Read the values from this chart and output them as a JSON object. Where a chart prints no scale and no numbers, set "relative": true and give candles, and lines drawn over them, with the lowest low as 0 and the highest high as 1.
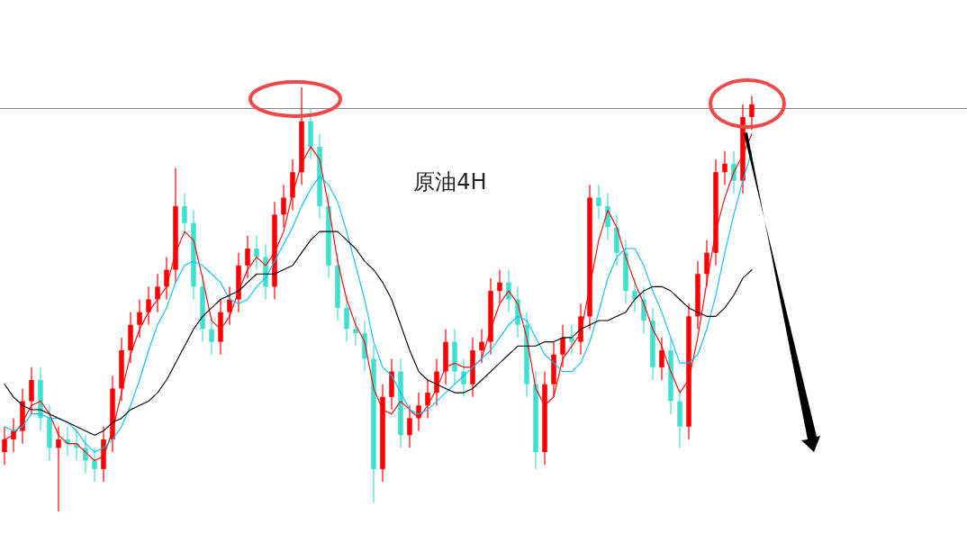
{
  "chart_data": {
    "type": "candlestick",
    "title": "原油4H",
    "relative": true,
    "categories": [
      null,
      null,
      null,
      null,
      null,
      null,
      null,
      null,
      null,
      null,
      null,
      null,
      null,
      null,
      null,
      null,
      null,
      null,
      null,
      null,
      null,
      null,
      null,
      null,
      null,
      null,
      null,
      null,
      null,
      null,
      null,
      null,
      null,
      null,
      null,
      null,
      null,
      null,
      null,
      null,
      null,
      null,
      null,
      null,
      null,
      null,
      null,
      null,
      null,
      null,
      null,
      null,
      null,
      null,
      null,
      null,
      null,
      null,
      null,
      null,
      null,
      null,
      null,
      null,
      null,
      null,
      null,
      null,
      null,
      null,
      null,
      null,
      null,
      null,
      null,
      null,
      null,
      null,
      null,
      null,
      null,
      null,
      null,
      null
    ],
    "ref_lines": [
      {
        "axis": "y",
        "value": 0.95,
        "color": "#808080"
      }
    ],
    "series": [
      {
        "type": "candlestick",
        "ohlc": [
          [
            0.14,
            0.2,
            0.11,
            0.17
          ],
          [
            0.17,
            0.22,
            0.14,
            0.19
          ],
          [
            0.19,
            0.29,
            0.16,
            0.26
          ],
          [
            0.26,
            0.34,
            0.23,
            0.31
          ],
          [
            0.31,
            0.34,
            0.19,
            0.22
          ],
          [
            0.22,
            0.25,
            0.12,
            0.15
          ],
          [
            0.15,
            0.2,
            0.0,
            0.17
          ],
          [
            0.17,
            0.2,
            0.13,
            0.16
          ],
          [
            0.16,
            0.19,
            0.12,
            0.15
          ],
          [
            0.15,
            0.18,
            0.09,
            0.12
          ],
          [
            0.12,
            0.15,
            0.07,
            0.1
          ],
          [
            0.1,
            0.2,
            0.07,
            0.17
          ],
          [
            0.17,
            0.32,
            0.14,
            0.29
          ],
          [
            0.29,
            0.41,
            0.26,
            0.38
          ],
          [
            0.38,
            0.47,
            0.35,
            0.44
          ],
          [
            0.44,
            0.5,
            0.41,
            0.47
          ],
          [
            0.47,
            0.53,
            0.44,
            0.5
          ],
          [
            0.5,
            0.56,
            0.47,
            0.53
          ],
          [
            0.53,
            0.6,
            0.5,
            0.57
          ],
          [
            0.57,
            0.81,
            0.54,
            0.72
          ],
          [
            0.72,
            0.75,
            0.65,
            0.68
          ],
          [
            0.68,
            0.71,
            0.5,
            0.53
          ],
          [
            0.53,
            0.56,
            0.4,
            0.43
          ],
          [
            0.43,
            0.46,
            0.37,
            0.4
          ],
          [
            0.4,
            0.5,
            0.37,
            0.47
          ],
          [
            0.47,
            0.53,
            0.44,
            0.5
          ],
          [
            0.5,
            0.61,
            0.47,
            0.58
          ],
          [
            0.58,
            0.65,
            0.55,
            0.62
          ],
          [
            0.62,
            0.65,
            0.57,
            0.6
          ],
          [
            0.6,
            0.63,
            0.5,
            0.53
          ],
          [
            0.53,
            0.73,
            0.5,
            0.7
          ],
          [
            0.7,
            0.77,
            0.67,
            0.74
          ],
          [
            0.74,
            0.83,
            0.71,
            0.8
          ],
          [
            0.8,
            1.0,
            0.77,
            0.92
          ],
          [
            0.92,
            0.95,
            0.83,
            0.86
          ],
          [
            0.86,
            0.89,
            0.69,
            0.72
          ],
          [
            0.72,
            0.75,
            0.55,
            0.58
          ],
          [
            0.58,
            0.61,
            0.45,
            0.48
          ],
          [
            0.48,
            0.51,
            0.4,
            0.43
          ],
          [
            0.43,
            0.46,
            0.39,
            0.42
          ],
          [
            0.42,
            0.45,
            0.33,
            0.36
          ],
          [
            0.36,
            0.39,
            0.02,
            0.1
          ],
          [
            0.1,
            0.3,
            0.07,
            0.27
          ],
          [
            0.27,
            0.36,
            0.24,
            0.33
          ],
          [
            0.33,
            0.36,
            0.15,
            0.18
          ],
          [
            0.18,
            0.25,
            0.15,
            0.22
          ],
          [
            0.22,
            0.28,
            0.19,
            0.25
          ],
          [
            0.25,
            0.31,
            0.22,
            0.28
          ],
          [
            0.28,
            0.36,
            0.25,
            0.33
          ],
          [
            0.33,
            0.43,
            0.3,
            0.4
          ],
          [
            0.4,
            0.43,
            0.3,
            0.33
          ],
          [
            0.33,
            0.36,
            0.27,
            0.3
          ],
          [
            0.3,
            0.41,
            0.27,
            0.38
          ],
          [
            0.38,
            0.43,
            0.35,
            0.4
          ],
          [
            0.4,
            0.55,
            0.37,
            0.52
          ],
          [
            0.52,
            0.57,
            0.49,
            0.54
          ],
          [
            0.54,
            0.57,
            0.47,
            0.5
          ],
          [
            0.5,
            0.53,
            0.41,
            0.44
          ],
          [
            0.44,
            0.47,
            0.27,
            0.3
          ],
          [
            0.3,
            0.33,
            0.1,
            0.14
          ],
          [
            0.14,
            0.33,
            0.11,
            0.3
          ],
          [
            0.3,
            0.4,
            0.27,
            0.37
          ],
          [
            0.37,
            0.44,
            0.34,
            0.41
          ],
          [
            0.41,
            0.44,
            0.37,
            0.4
          ],
          [
            0.4,
            0.49,
            0.37,
            0.46
          ],
          [
            0.46,
            0.77,
            0.43,
            0.74
          ],
          [
            0.74,
            0.77,
            0.69,
            0.72
          ],
          [
            0.72,
            0.75,
            0.64,
            0.67
          ],
          [
            0.67,
            0.7,
            0.58,
            0.61
          ],
          [
            0.61,
            0.64,
            0.49,
            0.52
          ],
          [
            0.52,
            0.55,
            0.47,
            0.5
          ],
          [
            0.5,
            0.53,
            0.42,
            0.45
          ],
          [
            0.45,
            0.48,
            0.31,
            0.34
          ],
          [
            0.34,
            0.41,
            0.31,
            0.38
          ],
          [
            0.38,
            0.41,
            0.23,
            0.26
          ],
          [
            0.26,
            0.29,
            0.15,
            0.2
          ],
          [
            0.2,
            0.49,
            0.17,
            0.46
          ],
          [
            0.46,
            0.59,
            0.43,
            0.56
          ],
          [
            0.56,
            0.64,
            0.53,
            0.61
          ],
          [
            0.61,
            0.83,
            0.58,
            0.8
          ],
          [
            0.8,
            0.85,
            0.77,
            0.82
          ],
          [
            0.82,
            0.85,
            0.75,
            0.78
          ],
          [
            0.78,
            0.96,
            0.75,
            0.93
          ],
          [
            0.93,
            0.98,
            0.9,
            0.96
          ]
        ],
        "colors": [
          "#ff0000",
          "#ff0000",
          "#ff0000",
          "#ff0000",
          "#40e0d0",
          "#40e0d0",
          "#ff0000",
          "#40e0d0",
          "#40e0d0",
          "#40e0d0",
          "#40e0d0",
          "#ff0000",
          "#ff0000",
          "#ff0000",
          "#ff0000",
          "#ff0000",
          "#ff0000",
          "#ff0000",
          "#ff0000",
          "#ff0000",
          "#40e0d0",
          "#40e0d0",
          "#40e0d0",
          "#40e0d0",
          "#ff0000",
          "#ff0000",
          "#ff0000",
          "#ff0000",
          "#40e0d0",
          "#40e0d0",
          "#ff0000",
          "#ff0000",
          "#ff0000",
          "#ff0000",
          "#40e0d0",
          "#40e0d0",
          "#40e0d0",
          "#40e0d0",
          "#40e0d0",
          "#40e0d0",
          "#40e0d0",
          "#40e0d0",
          "#ff0000",
          "#ff0000",
          "#40e0d0",
          "#ff0000",
          "#ff0000",
          "#ff0000",
          "#ff0000",
          "#ff0000",
          "#40e0d0",
          "#40e0d0",
          "#ff0000",
          "#ff0000",
          "#ff0000",
          "#ff0000",
          "#40e0d0",
          "#40e0d0",
          "#40e0d0",
          "#40e0d0",
          "#ff0000",
          "#ff0000",
          "#ff0000",
          "#40e0d0",
          "#ff0000",
          "#ff0000",
          "#40e0d0",
          "#40e0d0",
          "#40e0d0",
          "#40e0d0",
          "#40e0d0",
          "#40e0d0",
          "#40e0d0",
          "#ff0000",
          "#40e0d0",
          "#40e0d0",
          "#ff0000",
          "#ff0000",
          "#ff0000",
          "#ff0000",
          "#ff0000",
          "#40e0d0",
          "#ff0000",
          "#ff0000"
        ]
      },
      {
        "type": "line",
        "color": "#ff0000",
        "values": [
          0.17,
          0.18,
          0.21,
          0.25,
          0.26,
          0.23,
          0.18,
          0.16,
          0.16,
          0.14,
          0.12,
          0.13,
          0.19,
          0.28,
          0.37,
          0.43,
          0.47,
          0.5,
          0.53,
          0.61,
          0.66,
          0.64,
          0.55,
          0.45,
          0.43,
          0.46,
          0.52,
          0.57,
          0.6,
          0.58,
          0.61,
          0.66,
          0.75,
          0.82,
          0.86,
          0.83,
          0.72,
          0.59,
          0.5,
          0.44,
          0.4,
          0.29,
          0.24,
          0.23,
          0.26,
          0.24,
          0.22,
          0.25,
          0.29,
          0.34,
          0.35,
          0.34,
          0.34,
          0.36,
          0.43,
          0.49,
          0.52,
          0.49,
          0.41,
          0.29,
          0.25,
          0.27,
          0.36,
          0.39,
          0.42,
          0.53,
          0.64,
          0.71,
          0.67,
          0.6,
          0.54,
          0.49,
          0.43,
          0.39,
          0.33,
          0.28,
          0.31,
          0.41,
          0.54,
          0.66,
          0.74,
          0.8,
          0.84,
          0.89
        ]
      },
      {
        "type": "line",
        "color": "#00bfff",
        "values": [
          0.2,
          0.19,
          0.2,
          0.23,
          0.23,
          0.22,
          0.22,
          0.21,
          0.19,
          0.16,
          0.14,
          0.15,
          0.17,
          0.2,
          0.25,
          0.31,
          0.38,
          0.44,
          0.48,
          0.54,
          0.58,
          0.59,
          0.58,
          0.56,
          0.54,
          0.5,
          0.49,
          0.5,
          0.53,
          0.55,
          0.59,
          0.63,
          0.67,
          0.72,
          0.76,
          0.79,
          0.77,
          0.73,
          0.66,
          0.58,
          0.5,
          0.4,
          0.34,
          0.32,
          0.28,
          0.24,
          0.23,
          0.24,
          0.26,
          0.28,
          0.3,
          0.32,
          0.34,
          0.36,
          0.38,
          0.41,
          0.44,
          0.46,
          0.45,
          0.41,
          0.37,
          0.35,
          0.33,
          0.33,
          0.35,
          0.4,
          0.47,
          0.55,
          0.6,
          0.62,
          0.62,
          0.58,
          0.52,
          0.47,
          0.41,
          0.35,
          0.35,
          0.37,
          0.43,
          0.51,
          0.61,
          0.7,
          0.78,
          0.85
        ]
      },
      {
        "type": "line",
        "color": "#000000",
        "values": [
          0.3,
          0.27,
          0.25,
          0.24,
          0.24,
          0.23,
          0.22,
          0.21,
          0.2,
          0.19,
          0.18,
          0.19,
          0.21,
          0.22,
          0.24,
          0.25,
          0.26,
          0.28,
          0.31,
          0.35,
          0.39,
          0.43,
          0.46,
          0.48,
          0.5,
          0.51,
          0.52,
          0.54,
          0.56,
          0.56,
          0.56,
          0.57,
          0.58,
          0.61,
          0.64,
          0.66,
          0.66,
          0.66,
          0.64,
          0.62,
          0.59,
          0.57,
          0.54,
          0.5,
          0.44,
          0.38,
          0.33,
          0.31,
          0.3,
          0.29,
          0.28,
          0.28,
          0.29,
          0.31,
          0.33,
          0.35,
          0.37,
          0.39,
          0.39,
          0.39,
          0.4,
          0.4,
          0.41,
          0.41,
          0.43,
          0.44,
          0.45,
          0.45,
          0.46,
          0.47,
          0.5,
          0.52,
          0.53,
          0.53,
          0.52,
          0.5,
          0.48,
          0.47,
          0.46,
          0.46,
          0.48,
          0.51,
          0.55,
          0.57
        ]
      }
    ]
  }
}
